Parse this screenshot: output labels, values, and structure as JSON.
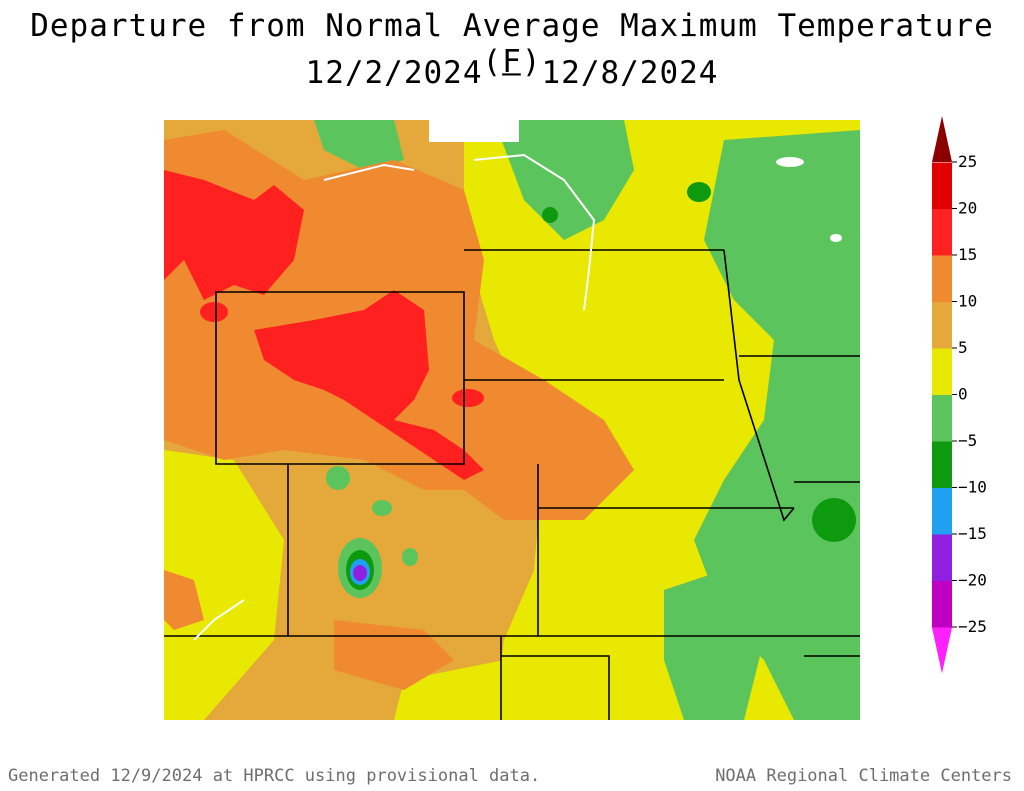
{
  "title": "Departure from Normal Average Maximum Temperature (F)",
  "subtitle": "12/2/2024 – 12/8/2024",
  "legend": {
    "ticks": [
      "25",
      "20",
      "15",
      "10",
      "5",
      "0",
      "−5",
      "−10",
      "−15",
      "−20",
      "−25"
    ],
    "bins": [
      {
        "color": "#8b0000"
      },
      {
        "color": "#e00000"
      },
      {
        "color": "#ff2020"
      },
      {
        "color": "#f08a30"
      },
      {
        "color": "#e5a83a"
      },
      {
        "color": "#e8e800"
      },
      {
        "color": "#5cc45c"
      },
      {
        "color": "#0e9a0e"
      },
      {
        "color": "#20a0f0"
      },
      {
        "color": "#9020e0"
      },
      {
        "color": "#c000c0"
      },
      {
        "color": "#ff20ff"
      }
    ]
  },
  "footer": {
    "left": "Generated 12/9/2024 at HPRCC using provisional data.",
    "right": "NOAA Regional Climate Centers"
  }
}
